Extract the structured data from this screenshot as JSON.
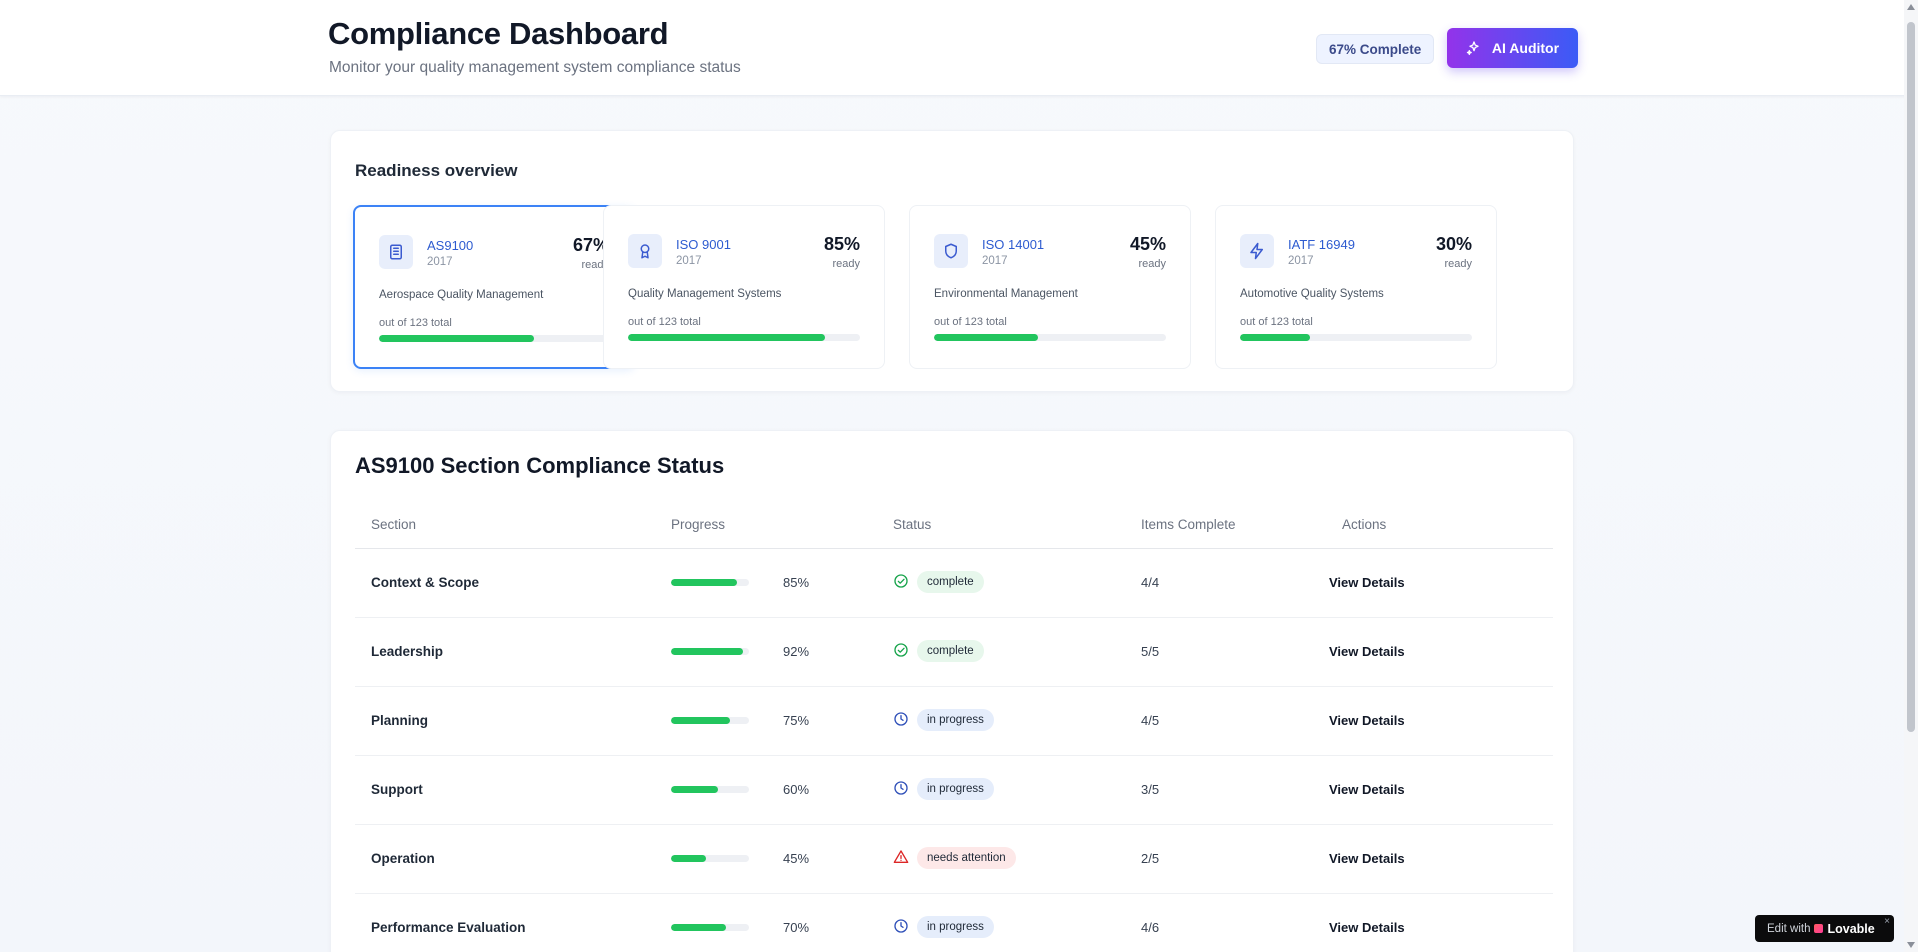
{
  "header": {
    "title": "Compliance Dashboard",
    "subtitle": "Monitor your quality management system compliance status",
    "complete_label": "67% Complete",
    "ai_button_label": "AI Auditor"
  },
  "readiness": {
    "title": "Readiness overview",
    "cards": [
      {
        "name": "AS9100",
        "year": "2017",
        "pct_label": "67%",
        "ready": "ready",
        "desc": "Aerospace Quality Management",
        "out_of": "out of 123 total",
        "progress": 67,
        "icon": "building-icon"
      },
      {
        "name": "ISO 9001",
        "year": "2017",
        "pct_label": "85%",
        "ready": "ready",
        "desc": "Quality Management Systems",
        "out_of": "out of 123 total",
        "progress": 85,
        "icon": "award-icon"
      },
      {
        "name": "ISO 14001",
        "year": "2017",
        "pct_label": "45%",
        "ready": "ready",
        "desc": "Environmental Management",
        "out_of": "out of 123 total",
        "progress": 45,
        "icon": "shield-icon"
      },
      {
        "name": "IATF 16949",
        "year": "2017",
        "pct_label": "30%",
        "ready": "ready",
        "desc": "Automotive Quality Systems",
        "out_of": "out of 123 total",
        "progress": 30,
        "icon": "lightning-icon"
      }
    ]
  },
  "sections": {
    "title": "AS9100 Section Compliance Status",
    "columns": {
      "section": "Section",
      "progress": "Progress",
      "status": "Status",
      "items": "Items Complete",
      "actions": "Actions"
    },
    "rows": [
      {
        "section": "Context & Scope",
        "progress": 85,
        "pct_label": "85%",
        "status": "complete",
        "status_kind": "complete",
        "items": "4/4",
        "action": "View Details"
      },
      {
        "section": "Leadership",
        "progress": 92,
        "pct_label": "92%",
        "status": "complete",
        "status_kind": "complete",
        "items": "5/5",
        "action": "View Details"
      },
      {
        "section": "Planning",
        "progress": 75,
        "pct_label": "75%",
        "status": "in progress",
        "status_kind": "progress",
        "items": "4/5",
        "action": "View Details"
      },
      {
        "section": "Support",
        "progress": 60,
        "pct_label": "60%",
        "status": "in progress",
        "status_kind": "progress",
        "items": "3/5",
        "action": "View Details"
      },
      {
        "section": "Operation",
        "progress": 45,
        "pct_label": "45%",
        "status": "needs attention",
        "status_kind": "attention",
        "items": "2/5",
        "action": "View Details"
      },
      {
        "section": "Performance Evaluation",
        "progress": 70,
        "pct_label": "70%",
        "status": "in progress",
        "status_kind": "progress",
        "items": "4/6",
        "action": "View Details"
      }
    ]
  },
  "colors": {
    "accent": "#3b82f6",
    "progress_fill": "#22c55e"
  },
  "lovable": {
    "edit": "Edit with",
    "brand": "Lovable",
    "close": "×"
  }
}
